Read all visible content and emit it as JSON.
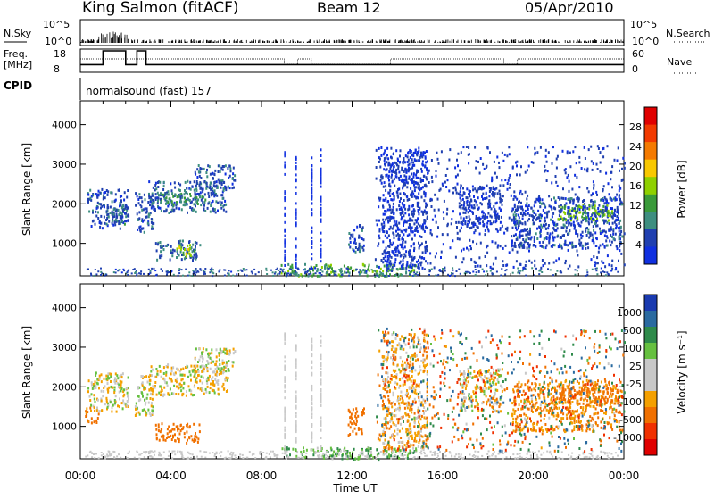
{
  "header": {
    "station": "King Salmon (fitACF)",
    "beam": "Beam 12",
    "date": "05/Apr/2010"
  },
  "strips": {
    "nsky_label": "N.Sky",
    "nsky_ticks": [
      "10^5",
      "10^0"
    ],
    "nsearch_label": "N.Search",
    "nsearch_ticks": [
      "10^5",
      "10^0"
    ],
    "freq_label_1": "Freq.",
    "freq_label_2": "[MHz]",
    "freq_ticks": [
      "18",
      "8"
    ],
    "nave_label": "Nave",
    "nave_ticks": [
      "60",
      "0"
    ],
    "cpid_label": "CPID",
    "cpid_value": "normalsound (fast) 157"
  },
  "colorbars": {
    "power": {
      "label": "Power [dB]",
      "ticks": [
        "28",
        "24",
        "20",
        "16",
        "12",
        "8",
        "4"
      ],
      "colors": [
        "#e00000",
        "#f23a00",
        "#f47a00",
        "#f8c800",
        "#8fd000",
        "#3a9a3a",
        "#3e8e80",
        "#2040b0",
        "#1030e0"
      ]
    },
    "velocity": {
      "label": "Velocity [m s⁻¹]",
      "ticks": [
        "1000",
        "500",
        "100",
        "25",
        "-25",
        "-100",
        "-500",
        "-1000"
      ],
      "colors": [
        "#1a3ab0",
        "#2a6aa0",
        "#2e8a4a",
        "#66c040",
        "#c8c8c8",
        "#c8c8c8",
        "#f4a000",
        "#f07000",
        "#f03000",
        "#e00000"
      ]
    }
  },
  "chart_data": [
    {
      "type": "heatmap",
      "title": "Power",
      "ylabel": "Slant Range [km]",
      "xlabel": "Time UT",
      "x_ticks": [
        "00:00",
        "04:00",
        "08:00",
        "12:00",
        "16:00",
        "20:00",
        "00:00"
      ],
      "y_ticks": [
        1000,
        2000,
        3000,
        4000
      ],
      "ylim": [
        180,
        4600
      ],
      "xlim_hours": [
        0,
        24
      ],
      "colorbar": "Power [dB]",
      "regions": [
        {
          "t": [
            0.3,
            2.1
          ],
          "r": [
            1400,
            2400
          ],
          "level": 5
        },
        {
          "t": [
            1.1,
            2.0
          ],
          "r": [
            1500,
            2000
          ],
          "level": 8
        },
        {
          "t": [
            2.4,
            3.2
          ],
          "r": [
            1300,
            2300
          ],
          "level": 5
        },
        {
          "t": [
            3.0,
            6.5
          ],
          "r": [
            1800,
            2600
          ],
          "level": 6
        },
        {
          "t": [
            3.5,
            5.5
          ],
          "r": [
            2000,
            2300
          ],
          "level": 11
        },
        {
          "t": [
            5.0,
            6.8
          ],
          "r": [
            2400,
            3000
          ],
          "level": 6
        },
        {
          "t": [
            3.3,
            5.3
          ],
          "r": [
            600,
            1100
          ],
          "level": 7
        },
        {
          "t": [
            4.2,
            5.0
          ],
          "r": [
            700,
            1000
          ],
          "level": 16
        },
        {
          "t": [
            8.8,
            14.8
          ],
          "r": [
            200,
            500
          ],
          "level": 12
        },
        {
          "t": [
            11.8,
            12.5
          ],
          "r": [
            800,
            1500
          ],
          "level": 5
        },
        {
          "t": [
            13.3,
            15.3
          ],
          "r": [
            400,
            3400
          ],
          "level": 3
        },
        {
          "t": [
            16.7,
            18.6
          ],
          "r": [
            1400,
            2500
          ],
          "level": 4
        },
        {
          "t": [
            19.0,
            23.9
          ],
          "r": [
            900,
            2200
          ],
          "level": 5
        },
        {
          "t": [
            21.0,
            23.5
          ],
          "r": [
            1600,
            2000
          ],
          "level": 14
        }
      ]
    },
    {
      "type": "heatmap",
      "title": "Velocity",
      "ylabel": "Slant Range [km]",
      "xlabel": "Time UT",
      "x_ticks": [
        "00:00",
        "04:00",
        "08:00",
        "12:00",
        "16:00",
        "20:00",
        "00:00"
      ],
      "y_ticks": [
        1000,
        2000,
        3000,
        4000
      ],
      "ylim": [
        180,
        4600
      ],
      "xlim_hours": [
        0,
        24
      ],
      "colorbar": "Velocity [m s-1]",
      "regions": [
        {
          "t": [
            0.3,
            2.1
          ],
          "r": [
            1400,
            2400
          ],
          "vel": 0
        },
        {
          "t": [
            0.2,
            0.8
          ],
          "r": [
            1100,
            1500
          ],
          "vel": -150
        },
        {
          "t": [
            2.4,
            3.2
          ],
          "r": [
            1300,
            2300
          ],
          "vel": 0
        },
        {
          "t": [
            3.0,
            6.5
          ],
          "r": [
            1800,
            2600
          ],
          "vel": -20
        },
        {
          "t": [
            5.0,
            6.8
          ],
          "r": [
            2400,
            3000
          ],
          "vel": 0
        },
        {
          "t": [
            3.3,
            5.3
          ],
          "r": [
            600,
            1100
          ],
          "vel": -200
        },
        {
          "t": [
            8.8,
            14.8
          ],
          "r": [
            200,
            500
          ],
          "vel": 80
        },
        {
          "t": [
            11.8,
            12.5
          ],
          "r": [
            800,
            1500
          ],
          "vel": -400
        },
        {
          "t": [
            13.3,
            15.3
          ],
          "r": [
            400,
            3400
          ],
          "vel": -60
        },
        {
          "t": [
            16.7,
            18.6
          ],
          "r": [
            1400,
            2500
          ],
          "vel": -30
        },
        {
          "t": [
            19.0,
            23.9
          ],
          "r": [
            900,
            2200
          ],
          "vel": -100
        },
        {
          "t": [
            21.0,
            23.5
          ],
          "r": [
            1600,
            2000
          ],
          "vel": -300
        }
      ]
    },
    {
      "type": "line",
      "title": "Freq.",
      "ylabel": "Freq. [MHz]",
      "ylim": [
        8,
        18
      ],
      "x": [
        0,
        1.0,
        1.0,
        2.0,
        2.0,
        2.5,
        2.5,
        2.9,
        2.9,
        24
      ],
      "y": [
        11,
        11,
        18,
        18,
        11,
        11,
        18,
        18,
        11,
        11
      ]
    }
  ]
}
